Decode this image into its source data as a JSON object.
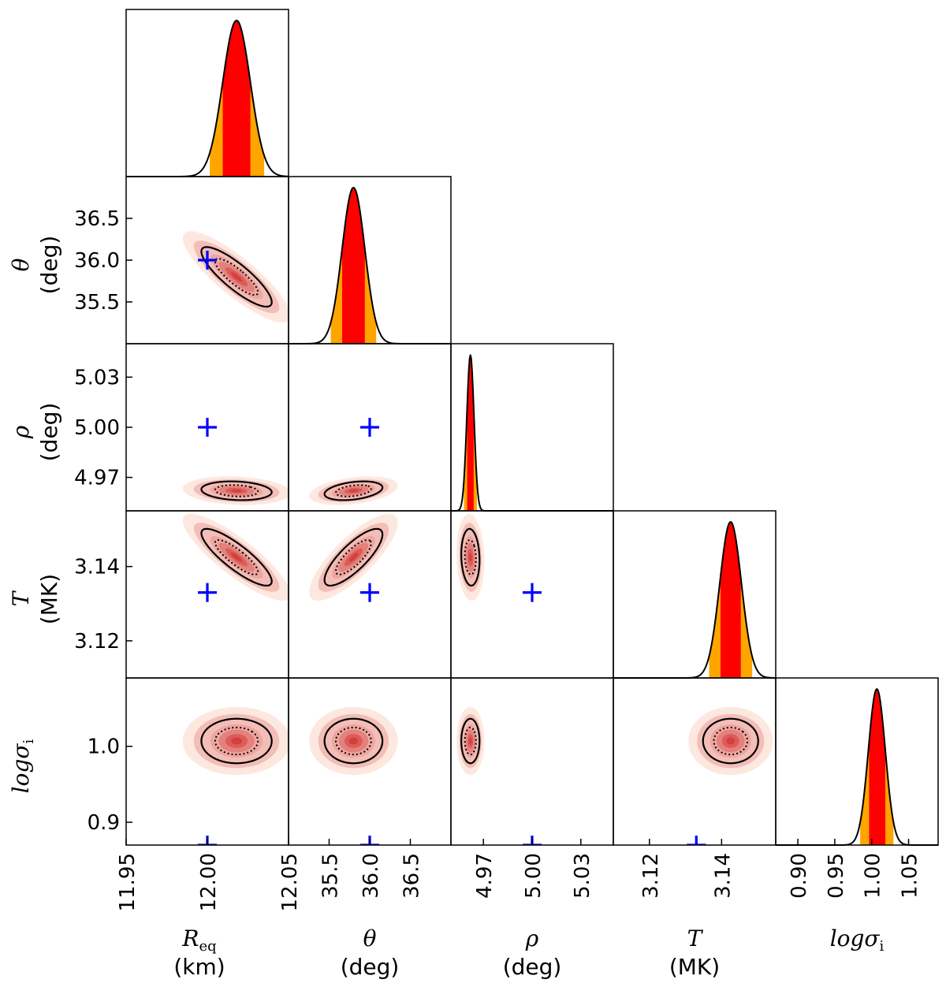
{
  "chart_data": {
    "type": "corner",
    "parameters": [
      {
        "key": "R",
        "symbol": "R",
        "subscript": "eq",
        "unit": "(km)",
        "range": [
          11.95,
          12.05
        ],
        "ticks": [
          "11.95",
          "12.00",
          "12.05"
        ],
        "tick_values": [
          11.95,
          12.0,
          12.05
        ],
        "mean": 12.018,
        "sigma": 0.0085,
        "truth": 12.0
      },
      {
        "key": "theta",
        "symbol": "θ",
        "subscript": "",
        "unit": "(deg)",
        "range": [
          35.0,
          37.0
        ],
        "ticks": [
          "35.5",
          "36.0",
          "36.5"
        ],
        "tick_values": [
          35.5,
          36.0,
          36.5
        ],
        "mean": 35.8,
        "sigma": 0.14,
        "truth": 36.0
      },
      {
        "key": "rho",
        "symbol": "ρ",
        "subscript": "",
        "unit": "(deg)",
        "range": [
          4.95,
          5.05
        ],
        "ticks": [
          "4.97",
          "5.00",
          "5.03"
        ],
        "tick_values": [
          4.97,
          5.0,
          5.03
        ],
        "mean": 4.962,
        "sigma": 0.0022,
        "truth": 5.0
      },
      {
        "key": "T",
        "symbol": "T",
        "subscript": "",
        "unit": "(MK)",
        "range": [
          3.11,
          3.155
        ],
        "ticks": [
          "3.12",
          "3.14"
        ],
        "tick_values": [
          3.12,
          3.14
        ],
        "mean": 3.1425,
        "sigma": 0.003,
        "truth": 3.133
      },
      {
        "key": "sigma",
        "symbol": "logσ",
        "subscript": "i",
        "unit": "",
        "range": [
          0.87,
          1.09
        ],
        "ticks": [
          "0.90",
          "0.95",
          "1.00",
          "1.05"
        ],
        "tick_values": [
          0.9,
          0.95,
          1.0,
          1.05
        ],
        "mean": 1.007,
        "sigma": 0.0115,
        "truth": 0.86
      }
    ],
    "y_ticks": {
      "theta": {
        "labels": [
          "35.5",
          "36.0",
          "36.5"
        ],
        "values": [
          35.5,
          36.0,
          36.5
        ]
      },
      "rho": {
        "labels": [
          "4.97",
          "5.00",
          "5.03"
        ],
        "values": [
          4.97,
          5.0,
          5.03
        ]
      },
      "T": {
        "labels": [
          "3.12",
          "3.14"
        ],
        "values": [
          3.12,
          3.14
        ]
      },
      "sigma": {
        "labels": [
          "0.9",
          "1.0"
        ],
        "values": [
          0.9,
          1.0
        ]
      }
    },
    "correlations": [
      {
        "pair": [
          "R",
          "theta"
        ],
        "r": -0.85
      },
      {
        "pair": [
          "R",
          "rho"
        ],
        "r": -0.15
      },
      {
        "pair": [
          "theta",
          "rho"
        ],
        "r": 0.35
      },
      {
        "pair": [
          "R",
          "T"
        ],
        "r": -0.85
      },
      {
        "pair": [
          "theta",
          "T"
        ],
        "r": 0.8
      },
      {
        "pair": [
          "rho",
          "T"
        ],
        "r": -0.1
      },
      {
        "pair": [
          "R",
          "sigma"
        ],
        "r": 0.0
      },
      {
        "pair": [
          "theta",
          "sigma"
        ],
        "r": 0.0
      },
      {
        "pair": [
          "rho",
          "sigma"
        ],
        "r": 0.0
      },
      {
        "pair": [
          "T",
          "sigma"
        ],
        "r": 0.0
      }
    ],
    "colors": {
      "inner_band": "#ff0000",
      "outer_band": "#ffa500",
      "density": "#cc1111",
      "density_halo": "#fde8e0",
      "truth_marker": "#0000ff",
      "contour": "#000000"
    }
  }
}
